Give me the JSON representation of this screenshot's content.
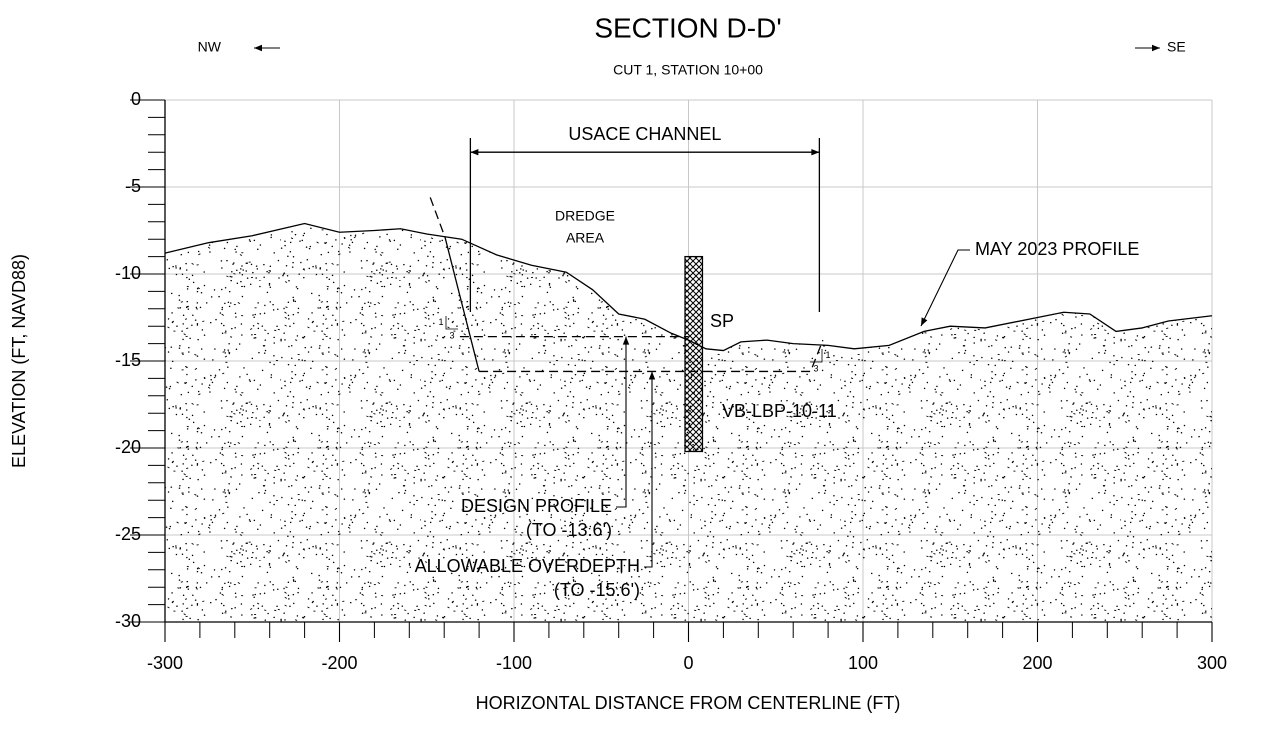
{
  "chart_data": {
    "type": "cross-section",
    "title": "SECTION D-D'",
    "subtitle": "CUT 1, STATION 10+00",
    "direction_left": "NW",
    "direction_right": "SE",
    "x_label": "HORIZONTAL DISTANCE FROM CENTERLINE (FT)",
    "y_label": "ELEVATION (FT, NAVD88)",
    "xlim": [
      -300,
      300
    ],
    "ylim": [
      -30,
      0
    ],
    "xticks": [
      -300,
      -200,
      -100,
      0,
      100,
      200,
      300
    ],
    "yticks": [
      0,
      -5,
      -10,
      -15,
      -20,
      -25,
      -30
    ],
    "xminorticks": [
      -280,
      -260,
      -240,
      -220,
      -180,
      -160,
      -140,
      -120,
      -80,
      -60,
      -40,
      -20,
      20,
      40,
      60,
      80,
      120,
      140,
      160,
      180,
      220,
      240,
      260,
      280
    ],
    "yminorticks": [
      -1,
      -2,
      -3,
      -4,
      -6,
      -7,
      -8,
      -9,
      -11,
      -12,
      -13,
      -14,
      -16,
      -17,
      -18,
      -19,
      -21,
      -22,
      -23,
      -24,
      -26,
      -27,
      -28,
      -29
    ],
    "grid": true,
    "grid_color": "#c8c8c8",
    "series": [
      {
        "name": "MAY 2023 PROFILE",
        "color": "#000000",
        "style": "solid",
        "fill": "stipple",
        "x": [
          -300,
          -275,
          -250,
          -220,
          -200,
          -180,
          -165,
          -150,
          -130,
          -110,
          -90,
          -70,
          -55,
          -40,
          -25,
          -10,
          0,
          10,
          20,
          30,
          45,
          60,
          80,
          95,
          115,
          135,
          150,
          170,
          200,
          215,
          230,
          245,
          260,
          275,
          300
        ],
        "values": [
          -8.8,
          -8.2,
          -7.8,
          -7.1,
          -7.6,
          -7.5,
          -7.4,
          -7.7,
          -8.0,
          -8.9,
          -9.5,
          -9.9,
          -10.9,
          -12.3,
          -12.6,
          -13.4,
          -13.8,
          -14.3,
          -14.4,
          -13.9,
          -13.8,
          -14.0,
          -14.1,
          -14.3,
          -14.1,
          -13.3,
          -13.0,
          -13.1,
          -12.5,
          -12.2,
          -12.3,
          -13.3,
          -13.1,
          -12.7,
          -12.4
        ]
      },
      {
        "name": "DESIGN PROFILE",
        "note": "(TO -13.6')",
        "color": "#000000",
        "style": "dashed",
        "x": [
          -131,
          0
        ],
        "values": [
          -13.6,
          -13.6
        ]
      },
      {
        "name": "ALLOWABLE OVERDEPTH",
        "note": "(TO -15.6')",
        "color": "#000000",
        "style": "dashed",
        "x": [
          -120,
          70,
          77
        ],
        "values": [
          -15.6,
          -15.6,
          -13.8
        ]
      },
      {
        "color": "#000000",
        "style": "dashed",
        "x": [
          -148,
          -139.5
        ],
        "values": [
          -5.6,
          -7.9
        ]
      },
      {
        "color": "#000000",
        "style": "solid",
        "x": [
          -139.5,
          -120
        ],
        "values": [
          -7.9,
          -15.6
        ]
      }
    ],
    "channel": {
      "label": "USACE CHANNEL",
      "x": [
        -125,
        75
      ],
      "y": -3.0
    },
    "dredge_area": [
      "DREDGE",
      "AREA"
    ],
    "slope": {
      "rise": "1",
      "run": "3"
    },
    "boring": {
      "name": "VB-LBP-10-11",
      "soil": "SP",
      "x": [
        -2,
        8
      ],
      "top": -9.0,
      "bottom": -20.2
    }
  }
}
